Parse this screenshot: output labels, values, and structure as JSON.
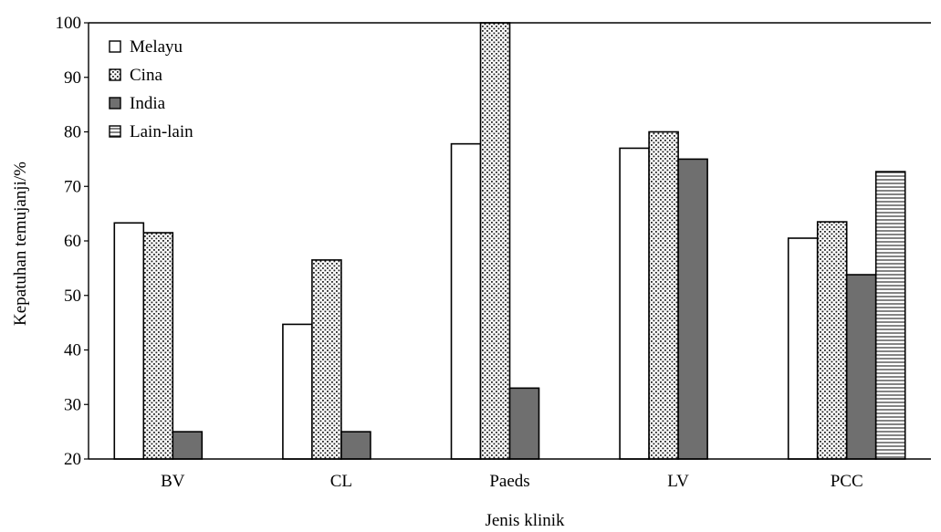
{
  "chart_data": {
    "type": "bar",
    "title": "",
    "xlabel": "Jenis klinik",
    "ylabel": "Kepatuhan temujanji/%",
    "categories": [
      "BV",
      "CL",
      "Paeds",
      "LV",
      "PCC"
    ],
    "ylim": [
      20,
      100
    ],
    "yticks": [
      20,
      30,
      40,
      50,
      60,
      70,
      80,
      90,
      100
    ],
    "grid": false,
    "legend_position": "top-left",
    "series": [
      {
        "name": "Melayu",
        "values": [
          63.3,
          44.7,
          77.8,
          77.0,
          60.5
        ],
        "pattern": "white",
        "color": "#ffffff"
      },
      {
        "name": "Cina",
        "values": [
          61.5,
          56.5,
          100,
          80.0,
          63.5
        ],
        "pattern": "dots",
        "color": "#ffffff"
      },
      {
        "name": "India",
        "values": [
          25.0,
          25.0,
          33.0,
          75.0,
          53.8
        ],
        "pattern": "solid",
        "color": "#6f6f6f"
      },
      {
        "name": "Lain-lain",
        "values": [
          null,
          null,
          null,
          null,
          72.7
        ],
        "pattern": "horizontal-lines",
        "color": "#ffffff"
      }
    ]
  }
}
